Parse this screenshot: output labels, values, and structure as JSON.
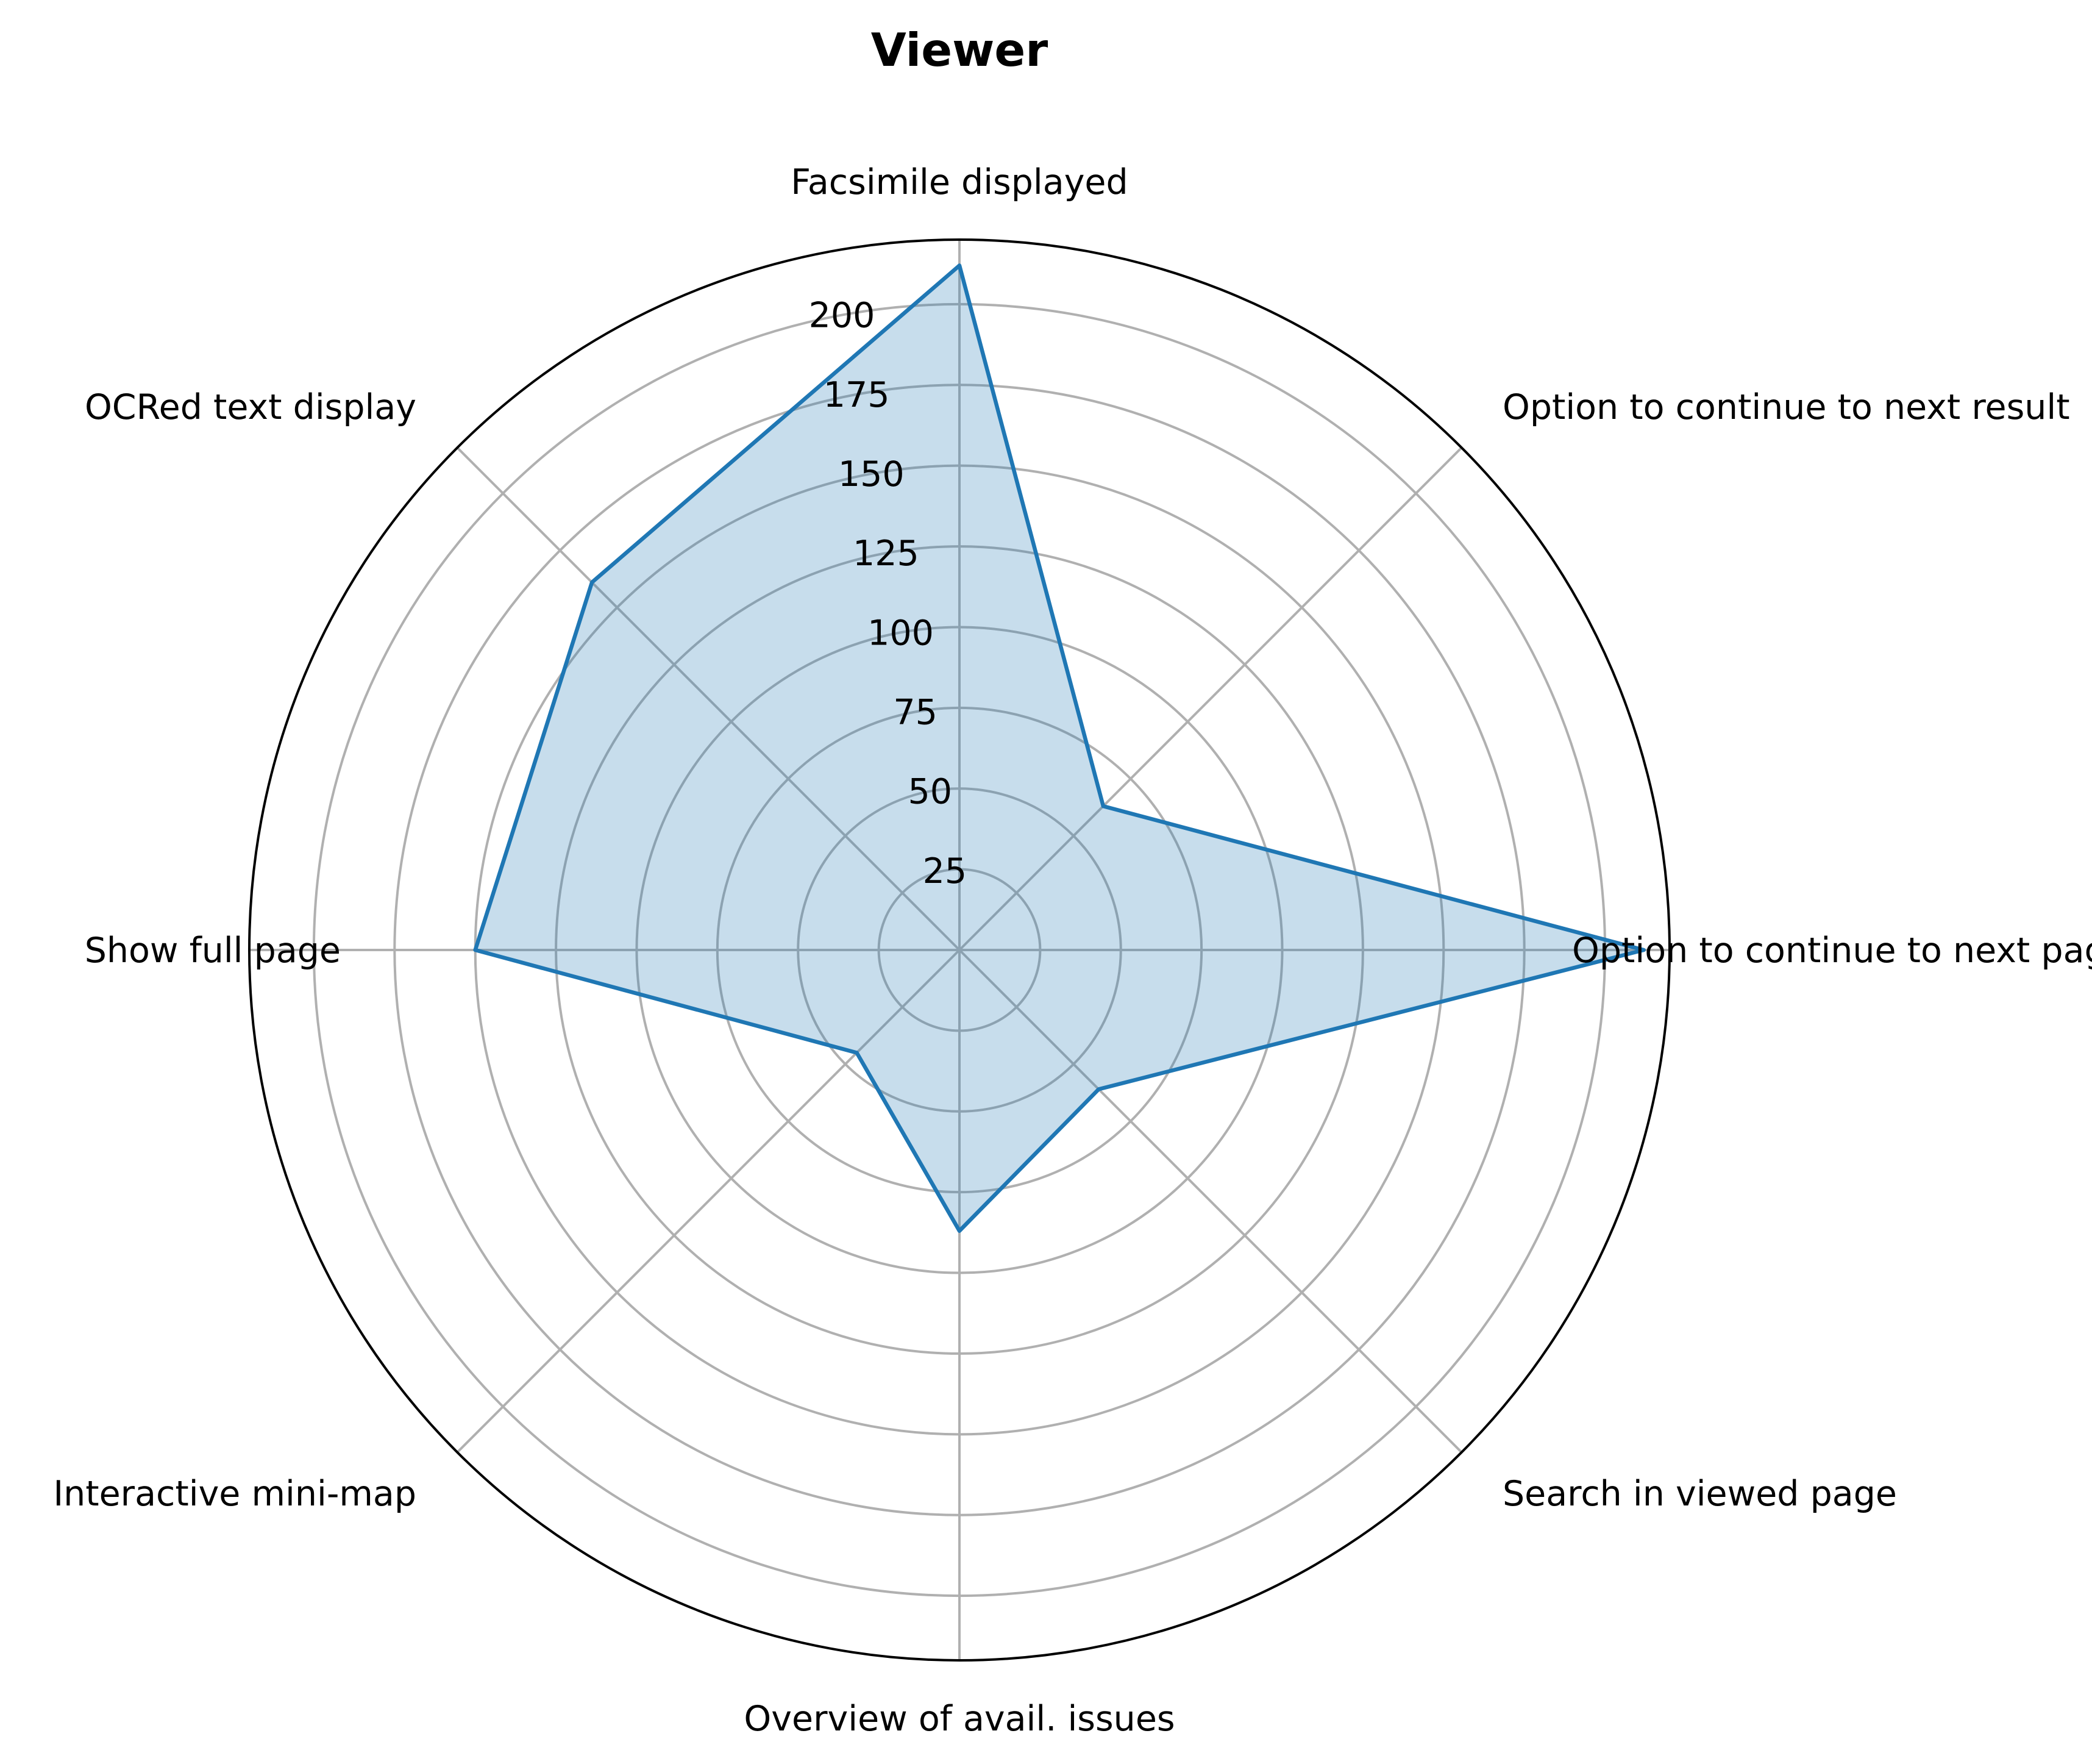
{
  "chart_data": {
    "type": "radar",
    "title": "Viewer",
    "categories": [
      "Option to continue to next page",
      "Option to continue to next result",
      "Facsimile displayed",
      "OCRed text display",
      "Show full page",
      "Interactive mini-map",
      "Overview of avail. issues",
      "Search in viewed page"
    ],
    "values": [
      212,
      63,
      212,
      161,
      150,
      45,
      87,
      61
    ],
    "rlim": [
      0,
      220
    ],
    "r_ticks": [
      25,
      50,
      75,
      100,
      125,
      150,
      175,
      200
    ],
    "grid": true,
    "colors": {
      "line": "#1f77b4",
      "fill": "#1f77b4",
      "fill_opacity": 0.25,
      "grid": "#b0b0b0"
    }
  }
}
